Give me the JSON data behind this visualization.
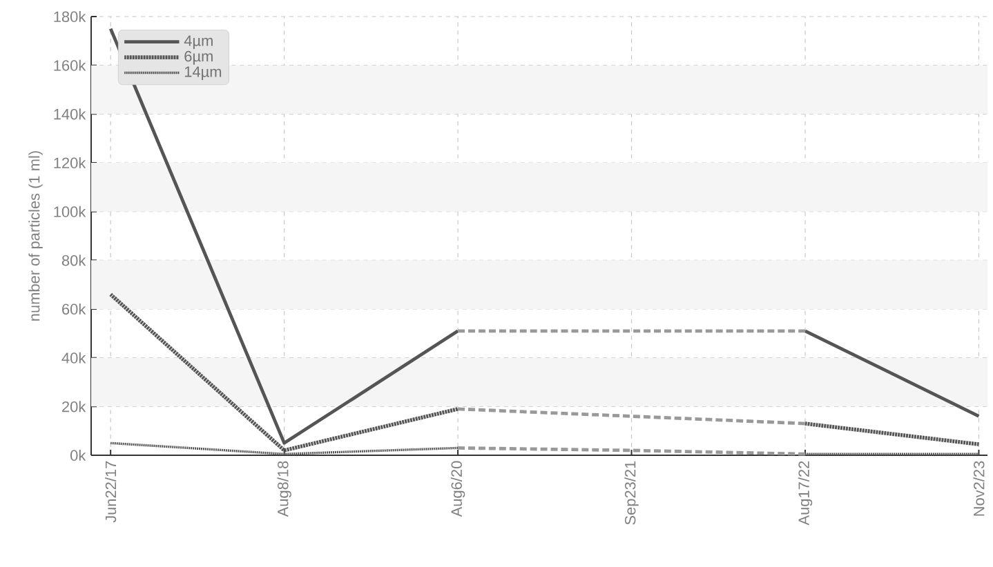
{
  "chart_data": {
    "type": "line",
    "ylabel": "number of particles (1 ml)",
    "categories": [
      "Jun22/17",
      "Aug8/18",
      "Aug6/20",
      "Sep23/21",
      "Aug17/22",
      "Nov2/23"
    ],
    "series": [
      {
        "name": "4µm",
        "color": "#555555",
        "line_style": "solid",
        "values": [
          175000,
          5000,
          51000,
          null,
          51000,
          16000
        ]
      },
      {
        "name": "6µm",
        "color": "#555555",
        "line_style": "dashed",
        "values": [
          66000,
          2000,
          19000,
          null,
          13000,
          4500
        ]
      },
      {
        "name": "14µm",
        "color": "#555555",
        "line_style": "dotted",
        "values": [
          5000,
          500,
          3000,
          null,
          500,
          500
        ]
      },
      {
        "color": "#999999",
        "line_style": "dashed",
        "values": [
          null,
          null,
          51000,
          51000,
          51000,
          null
        ]
      },
      {
        "color": "#999999",
        "line_style": "dashed",
        "values": [
          null,
          null,
          19000,
          16000,
          13000,
          null
        ]
      },
      {
        "color": "#999999",
        "line_style": "dashed",
        "values": [
          null,
          null,
          3000,
          2000,
          500,
          null
        ]
      }
    ],
    "ylim": [
      0,
      180000
    ],
    "yticks": [
      {
        "value": 0,
        "label": "0k"
      },
      {
        "value": 20000,
        "label": "20k"
      },
      {
        "value": 40000,
        "label": "40k"
      },
      {
        "value": 60000,
        "label": "60k"
      },
      {
        "value": 80000,
        "label": "80k"
      },
      {
        "value": 100000,
        "label": "100k"
      },
      {
        "value": 120000,
        "label": "120k"
      },
      {
        "value": 140000,
        "label": "140k"
      },
      {
        "value": 160000,
        "label": "160k"
      },
      {
        "value": 180000,
        "label": "180k"
      }
    ],
    "grid": true,
    "legend": "top left"
  }
}
